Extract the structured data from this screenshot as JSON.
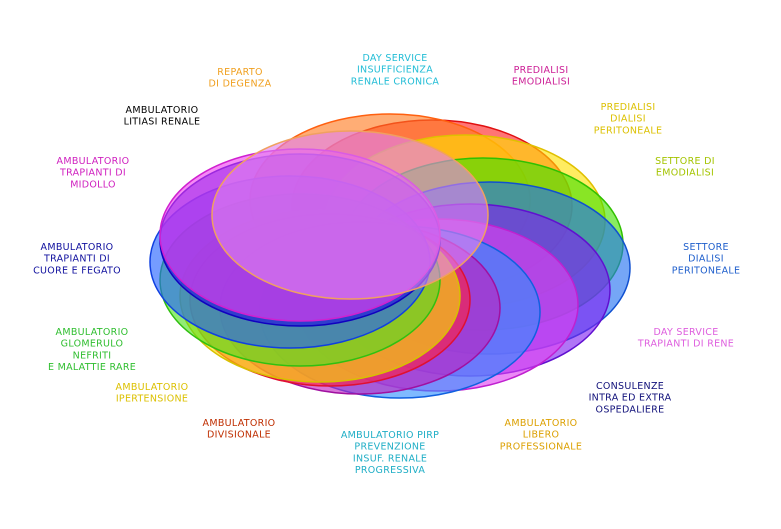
{
  "labels": [
    {
      "lines": [
        "DAY SERVICE",
        "INSUFFICIENZA",
        "RENALE CRONICA"
      ],
      "color": "#22bdd6"
    },
    {
      "lines": [
        "PREDIALISI",
        "EMODIALISI"
      ],
      "color": "#cc1f96"
    },
    {
      "lines": [
        "PREDIALISI",
        "DIALISI",
        "PERITONEALE"
      ],
      "color": "#dcc000"
    },
    {
      "lines": [
        "SETTORE DI",
        "EMODIALISI"
      ],
      "color": "#a4c400"
    },
    {
      "lines": [
        "SETTORE",
        "DIALISI",
        "PERITONEALE"
      ],
      "color": "#1f5fcc"
    },
    {
      "lines": [
        "DAY SERVICE",
        "TRAPIANTI DI RENE"
      ],
      "color": "#de5ede"
    },
    {
      "lines": [
        "CONSULENZE",
        "INTRA ED EXTRA",
        "OSPEDALIERE"
      ],
      "color": "#10107a"
    },
    {
      "lines": [
        "AMBULATORIO",
        "LIBERO",
        "PROFESSIONALE"
      ],
      "color": "#dca000"
    },
    {
      "lines": [
        "AMBULATORIO PIRP",
        "PREVENZIONE",
        "INSUF. RENALE",
        "PROGRESSIVA"
      ],
      "color": "#1faec6"
    },
    {
      "lines": [
        "AMBULATORIO",
        "DIVISIONALE"
      ],
      "color": "#bf2e00"
    },
    {
      "lines": [
        "AMBULATORIO",
        "IPERTENSIONE"
      ],
      "color": "#dcc000"
    },
    {
      "lines": [
        "AMBULATORIO",
        "GLOMERULO",
        "NEFRITI",
        "E MALATTIE RARE"
      ],
      "color": "#2fbe2f"
    },
    {
      "lines": [
        "AMBULATORIO",
        "TRAPIANTI DI",
        "CUORE E FEGATO"
      ],
      "color": "#10109e"
    },
    {
      "lines": [
        "AMBULATORIO",
        "TRAPIANTI DI",
        "MIDOLLO"
      ],
      "color": "#cf1fbf"
    },
    {
      "lines": [
        "AMBULATORIO",
        "LITIASI RENALE"
      ],
      "color": "#000000"
    },
    {
      "lines": [
        "REPARTO",
        "DI DEGENZA"
      ],
      "color": "#f0a020"
    }
  ]
}
